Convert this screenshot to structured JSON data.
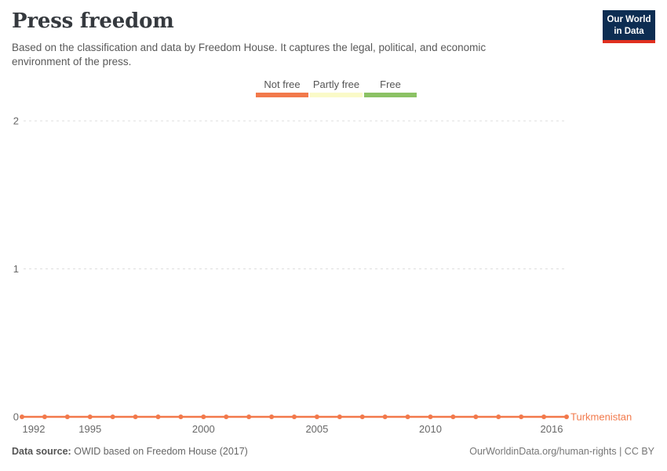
{
  "header": {
    "title": "Press freedom",
    "subtitle": "Based on the classification and data by Freedom House. It captures the legal, political, and economic environment of the press.",
    "logo": {
      "line1": "Our World",
      "line2": "in Data",
      "bg_color": "#0d2d52",
      "stripe_color": "#e0301f"
    }
  },
  "legend": {
    "items": [
      {
        "label": "Not free",
        "color": "#f2794b"
      },
      {
        "label": "Partly free",
        "color": "#fafac8"
      },
      {
        "label": "Free",
        "color": "#8bc264"
      }
    ]
  },
  "chart_data": {
    "type": "line",
    "title": "Press freedom",
    "x": [
      1992,
      1993,
      1994,
      1995,
      1996,
      1997,
      1998,
      1999,
      2000,
      2001,
      2002,
      2003,
      2004,
      2005,
      2006,
      2007,
      2008,
      2009,
      2010,
      2011,
      2012,
      2013,
      2014,
      2015,
      2016
    ],
    "series": [
      {
        "name": "Turkmenistan",
        "color": "#f2794b",
        "values": [
          0,
          0,
          0,
          0,
          0,
          0,
          0,
          0,
          0,
          0,
          0,
          0,
          0,
          0,
          0,
          0,
          0,
          0,
          0,
          0,
          0,
          0,
          0,
          0,
          0
        ]
      }
    ],
    "x_ticks": [
      1992,
      1995,
      2000,
      2005,
      2010,
      2016
    ],
    "y_ticks": [
      0,
      1,
      2
    ],
    "xlim": [
      1992,
      2016
    ],
    "ylim": [
      0,
      2
    ],
    "value_labels": {
      "0": "Not free",
      "1": "Partly free",
      "2": "Free"
    },
    "grid": "horizontal-dashed",
    "legend_position": "top-center",
    "marker": "circle-every-year"
  },
  "footer": {
    "source_label": "Data source:",
    "source_text": "OWID based on Freedom House (2017)",
    "right_text": "OurWorldinData.org/human-rights | CC BY"
  }
}
